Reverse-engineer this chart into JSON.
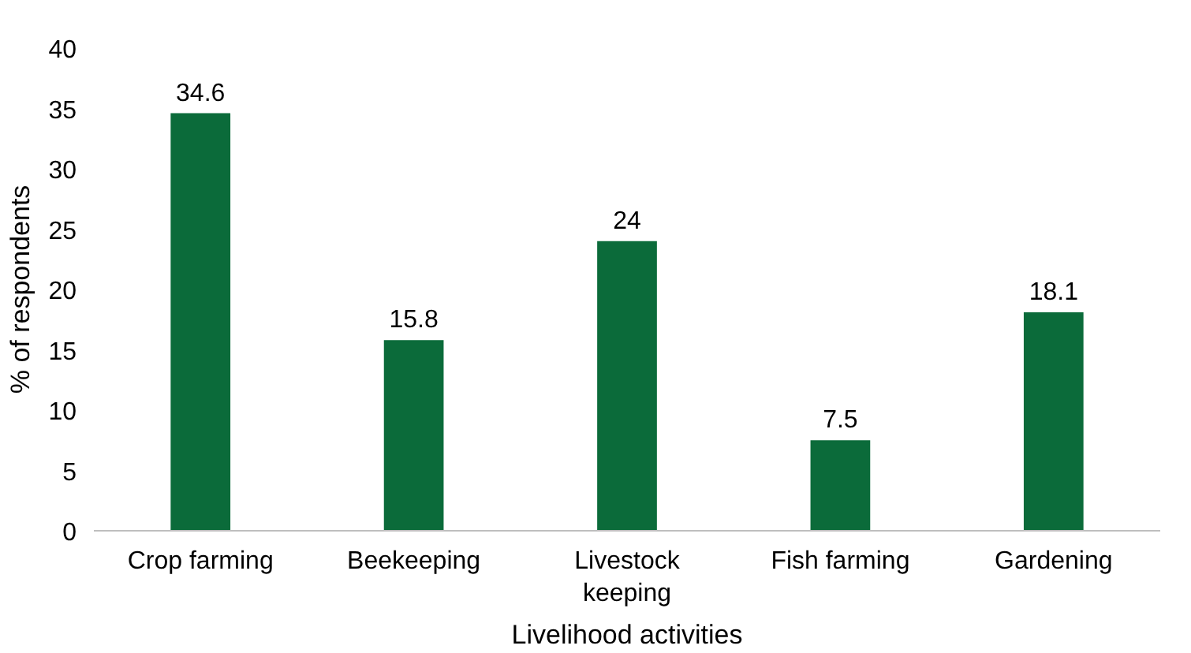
{
  "chart_data": {
    "type": "bar",
    "xlabel": "Livelihood activities",
    "ylabel": "% of respondents",
    "categories": [
      "Crop farming",
      "Beekeeping",
      "Livestock keeping",
      "Fish farming",
      "Gardening"
    ],
    "values": [
      34.6,
      15.8,
      24,
      7.5,
      18.1
    ],
    "color": "#0b6b3a",
    "data_labels": true,
    "ylim": [
      0,
      40
    ],
    "yticks": [
      0,
      5,
      10,
      15,
      20,
      25,
      30,
      35,
      40
    ],
    "grid": false
  }
}
